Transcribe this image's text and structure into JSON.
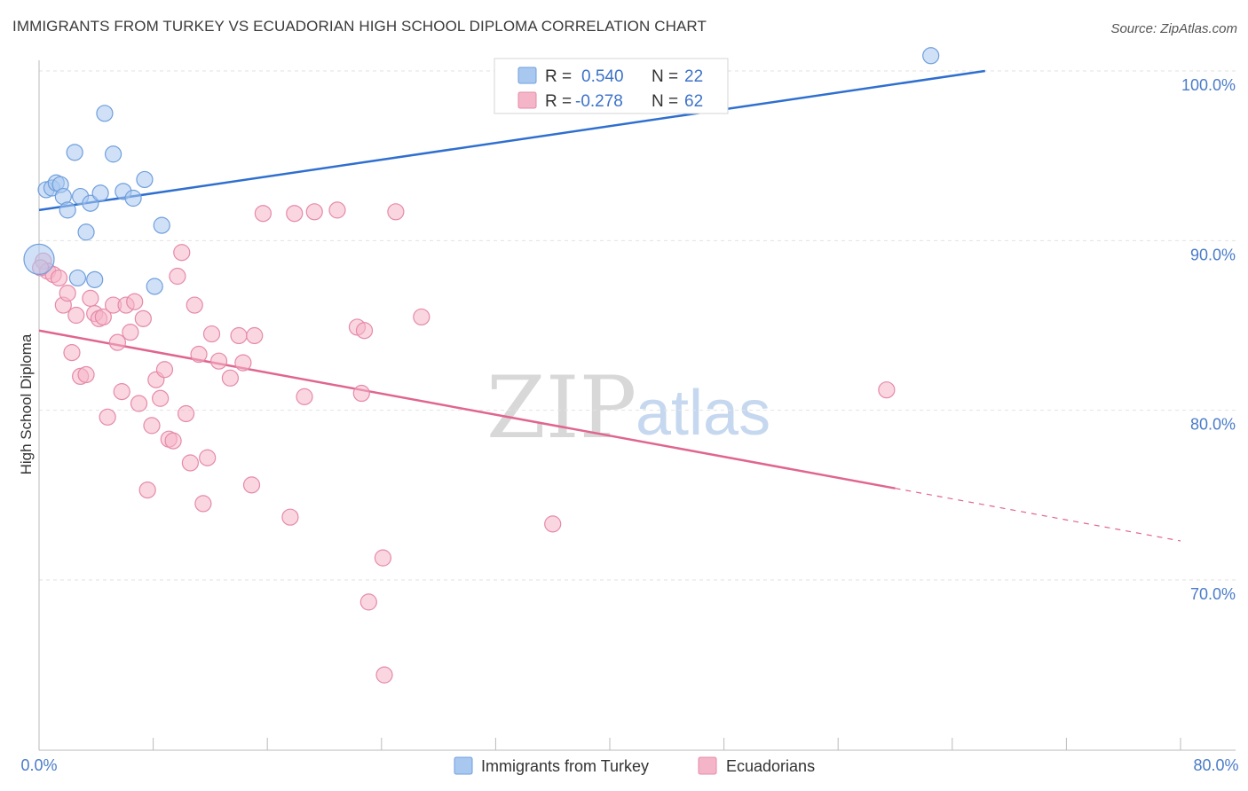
{
  "header": {
    "title": "IMMIGRANTS FROM TURKEY VS ECUADORIAN HIGH SCHOOL DIPLOMA CORRELATION CHART",
    "source": "Source: ZipAtlas.com"
  },
  "watermark": {
    "zip": "ZIP",
    "atlas": "atlas"
  },
  "legend": {
    "rows": [
      {
        "r_label": "R =",
        "r_value": "0.540",
        "n_label": "N =",
        "n_value": "22",
        "color": "#a9c8f0"
      },
      {
        "r_label": "R =",
        "r_value": "-0.278",
        "n_label": "N =",
        "n_value": "62",
        "color": "#f5b5c9"
      }
    ]
  },
  "bottom_legend": {
    "items": [
      {
        "label": "Immigrants from Turkey",
        "color": "#a9c8f0"
      },
      {
        "label": "Ecuadorians",
        "color": "#f5b5c9"
      }
    ]
  },
  "chart_data": {
    "type": "scatter",
    "title": "IMMIGRANTS FROM TURKEY VS ECUADORIAN HIGH SCHOOL DIPLOMA CORRELATION CHART",
    "xlabel": "",
    "ylabel": "High School Diploma",
    "xlim": [
      0,
      80
    ],
    "ylim": [
      60.5,
      102
    ],
    "x_tick_labels": [
      "0.0%",
      "80.0%"
    ],
    "y_ticks": [
      70,
      80,
      90,
      100
    ],
    "y_tick_labels": [
      "70.0%",
      "80.0%",
      "90.0%",
      "100.0%"
    ],
    "grid": true,
    "legend_position": "top-center",
    "colors": {
      "turkey": "#4a86d8",
      "ecuador": "#e8739a"
    },
    "series": [
      {
        "name": "Immigrants from Turkey",
        "color": "#a9c8f0",
        "stroke": "#6f9fdc",
        "trend": {
          "x": [
            0,
            66.3
          ],
          "y": [
            91.8,
            100.0
          ],
          "line_color": "#2f6fcf"
        },
        "points": [
          [
            0.0,
            88.9
          ],
          [
            0.5,
            93.0
          ],
          [
            0.9,
            93.1
          ],
          [
            1.2,
            93.4
          ],
          [
            1.5,
            93.3
          ],
          [
            1.7,
            92.6
          ],
          [
            2.0,
            91.8
          ],
          [
            2.5,
            95.2
          ],
          [
            2.9,
            92.6
          ],
          [
            3.3,
            90.5
          ],
          [
            3.6,
            92.2
          ],
          [
            4.3,
            92.8
          ],
          [
            4.6,
            97.5
          ],
          [
            5.2,
            95.1
          ],
          [
            5.9,
            92.9
          ],
          [
            6.6,
            92.5
          ],
          [
            7.4,
            93.6
          ],
          [
            8.1,
            87.3
          ],
          [
            8.6,
            90.9
          ],
          [
            2.7,
            87.8
          ],
          [
            3.9,
            87.7
          ],
          [
            62.5,
            100.9
          ]
        ]
      },
      {
        "name": "Ecuadorians",
        "color": "#f5b5c9",
        "stroke": "#e58aa8",
        "trend": {
          "x": [
            0,
            60.0
          ],
          "y": [
            84.7,
            75.4
          ],
          "dashed_to": [
            80.0,
            72.3
          ],
          "line_color": "#e0658f"
        },
        "points": [
          [
            0.3,
            88.8
          ],
          [
            0.6,
            88.2
          ],
          [
            1.0,
            88.0
          ],
          [
            1.4,
            87.8
          ],
          [
            1.7,
            86.2
          ],
          [
            2.0,
            86.9
          ],
          [
            2.3,
            83.4
          ],
          [
            2.6,
            85.6
          ],
          [
            2.9,
            82.0
          ],
          [
            3.3,
            82.1
          ],
          [
            3.6,
            86.6
          ],
          [
            3.9,
            85.7
          ],
          [
            4.2,
            85.4
          ],
          [
            4.5,
            85.5
          ],
          [
            4.8,
            79.6
          ],
          [
            5.2,
            86.2
          ],
          [
            5.5,
            84.0
          ],
          [
            5.8,
            81.1
          ],
          [
            6.1,
            86.2
          ],
          [
            6.4,
            84.6
          ],
          [
            6.7,
            86.4
          ],
          [
            7.0,
            80.4
          ],
          [
            7.3,
            85.4
          ],
          [
            7.6,
            75.3
          ],
          [
            7.9,
            79.1
          ],
          [
            8.2,
            81.8
          ],
          [
            8.5,
            80.7
          ],
          [
            8.8,
            82.4
          ],
          [
            9.1,
            78.3
          ],
          [
            9.4,
            78.2
          ],
          [
            9.7,
            87.9
          ],
          [
            10.0,
            89.3
          ],
          [
            10.3,
            79.8
          ],
          [
            10.6,
            76.9
          ],
          [
            10.9,
            86.2
          ],
          [
            11.2,
            83.3
          ],
          [
            11.5,
            74.5
          ],
          [
            11.8,
            77.2
          ],
          [
            12.1,
            84.5
          ],
          [
            12.6,
            82.9
          ],
          [
            13.4,
            81.9
          ],
          [
            14.0,
            84.4
          ],
          [
            14.3,
            82.8
          ],
          [
            14.9,
            75.6
          ],
          [
            15.1,
            84.4
          ],
          [
            15.7,
            91.6
          ],
          [
            17.6,
            73.7
          ],
          [
            17.9,
            91.6
          ],
          [
            18.6,
            80.8
          ],
          [
            19.3,
            91.7
          ],
          [
            20.9,
            91.8
          ],
          [
            22.3,
            84.9
          ],
          [
            22.6,
            81.0
          ],
          [
            22.8,
            84.7
          ],
          [
            23.1,
            68.7
          ],
          [
            24.1,
            71.3
          ],
          [
            24.2,
            64.4
          ],
          [
            25.0,
            91.7
          ],
          [
            26.8,
            85.5
          ],
          [
            36.0,
            73.3
          ],
          [
            59.4,
            81.2
          ],
          [
            0.1,
            88.4
          ]
        ]
      }
    ]
  }
}
